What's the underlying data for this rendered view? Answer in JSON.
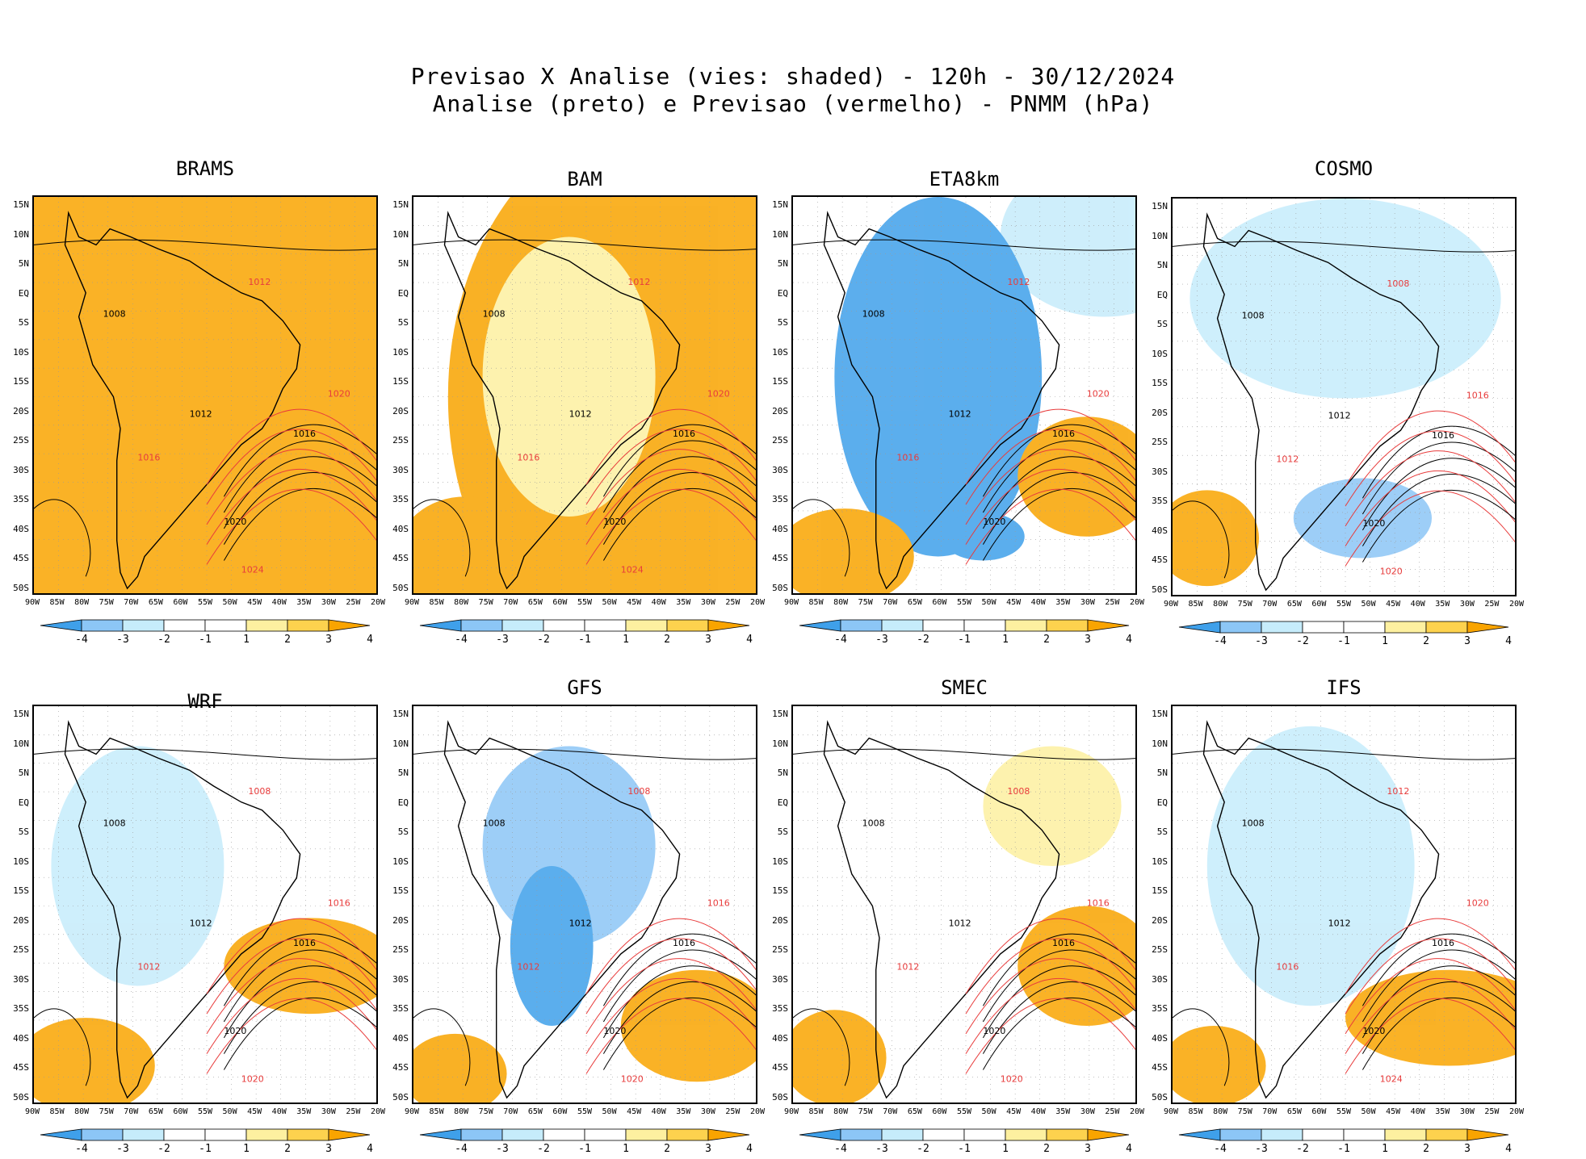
{
  "title_line1": "Previsao X Analise (vies: shaded) - 120h - 30/12/2024",
  "title_line2": "Analise (preto) e Previsao (vermelho) - PNMM (hPa)",
  "y_ticks": [
    "15N",
    "10N",
    "5N",
    "EQ",
    "5S",
    "10S",
    "15S",
    "20S",
    "25S",
    "30S",
    "35S",
    "40S",
    "45S",
    "50S"
  ],
  "x_ticks": [
    "90W",
    "85W",
    "80W",
    "75W",
    "70W",
    "65W",
    "60W",
    "55W",
    "50W",
    "45W",
    "40W",
    "35W",
    "30W",
    "25W",
    "20W"
  ],
  "colorbar_labels": [
    "-4",
    "-3",
    "-2",
    "-1",
    "1",
    "2",
    "3",
    "4"
  ],
  "colors": {
    "bias_scale": [
      "#3fa0ea",
      "#8cc6f6",
      "#c6ecfb",
      "#ffffff",
      "#ffffff",
      "#fdf0a0",
      "#fdd24e",
      "#f9a400"
    ],
    "analysis_contour": "#000000",
    "forecast_contour": "#e83c3c",
    "grid": "#9a9a9a"
  },
  "chart_data": [
    {
      "type": "heatmap",
      "model": "BRAMS",
      "bias_range": [
        -4,
        4
      ],
      "dominant_bias": "4+ (orange) over entire domain",
      "isobars_analysis": [
        "1008",
        "1012",
        "1016",
        "1020"
      ],
      "isobars_forecast": [
        "1012",
        "1016",
        "1020",
        "1024"
      ]
    },
    {
      "type": "heatmap",
      "model": "BAM",
      "bias_range": [
        -4,
        4
      ],
      "dominant_bias": "+1 to +4 (yellow/orange)",
      "isobars_analysis": [
        "1008",
        "1012",
        "1016",
        "1020"
      ],
      "isobars_forecast": [
        "1012",
        "1016",
        "1020",
        "1024"
      ]
    },
    {
      "type": "heatmap",
      "model": "ETA8km",
      "bias_range": [
        -4,
        4
      ],
      "dominant_bias": "-2 to -4 over continent, +3/+4 over South Atlantic",
      "isobars_analysis": [
        "1008",
        "1012",
        "1016",
        "1020"
      ],
      "isobars_forecast": [
        "1012",
        "1016",
        "1020"
      ]
    },
    {
      "type": "heatmap",
      "model": "COSMO",
      "bias_range": [
        -4,
        4
      ],
      "dominant_bias": "-1 to -2 (light blue) mixed",
      "isobars_analysis": [
        "1008",
        "1012",
        "1016",
        "1020"
      ],
      "isobars_forecast": [
        "1008",
        "1012",
        "1016",
        "1020"
      ]
    },
    {
      "type": "heatmap",
      "model": "WRF",
      "bias_range": [
        -4,
        4
      ],
      "dominant_bias": "mixed, +3 south",
      "isobars_analysis": [
        "1008",
        "1012",
        "1016",
        "1020"
      ],
      "isobars_forecast": [
        "1008",
        "1012",
        "1016",
        "1020"
      ]
    },
    {
      "type": "heatmap",
      "model": "GFS",
      "bias_range": [
        -4,
        4
      ],
      "dominant_bias": "-2 to -3 over central continent",
      "isobars_analysis": [
        "1008",
        "1012",
        "1016",
        "1020"
      ],
      "isobars_forecast": [
        "1008",
        "1012",
        "1016",
        "1020"
      ]
    },
    {
      "type": "heatmap",
      "model": "SMEC",
      "bias_range": [
        -4,
        4
      ],
      "dominant_bias": "near zero continent, +3 south",
      "isobars_analysis": [
        "1008",
        "1012",
        "1016",
        "1020"
      ],
      "isobars_forecast": [
        "1008",
        "1012",
        "1016",
        "1020"
      ]
    },
    {
      "type": "heatmap",
      "model": "IFS",
      "bias_range": [
        -4,
        4
      ],
      "dominant_bias": "-1 continent, +3/+4 south",
      "isobars_analysis": [
        "1008",
        "1012",
        "1016",
        "1020"
      ],
      "isobars_forecast": [
        "1012",
        "1016",
        "1020",
        "1024"
      ]
    }
  ]
}
